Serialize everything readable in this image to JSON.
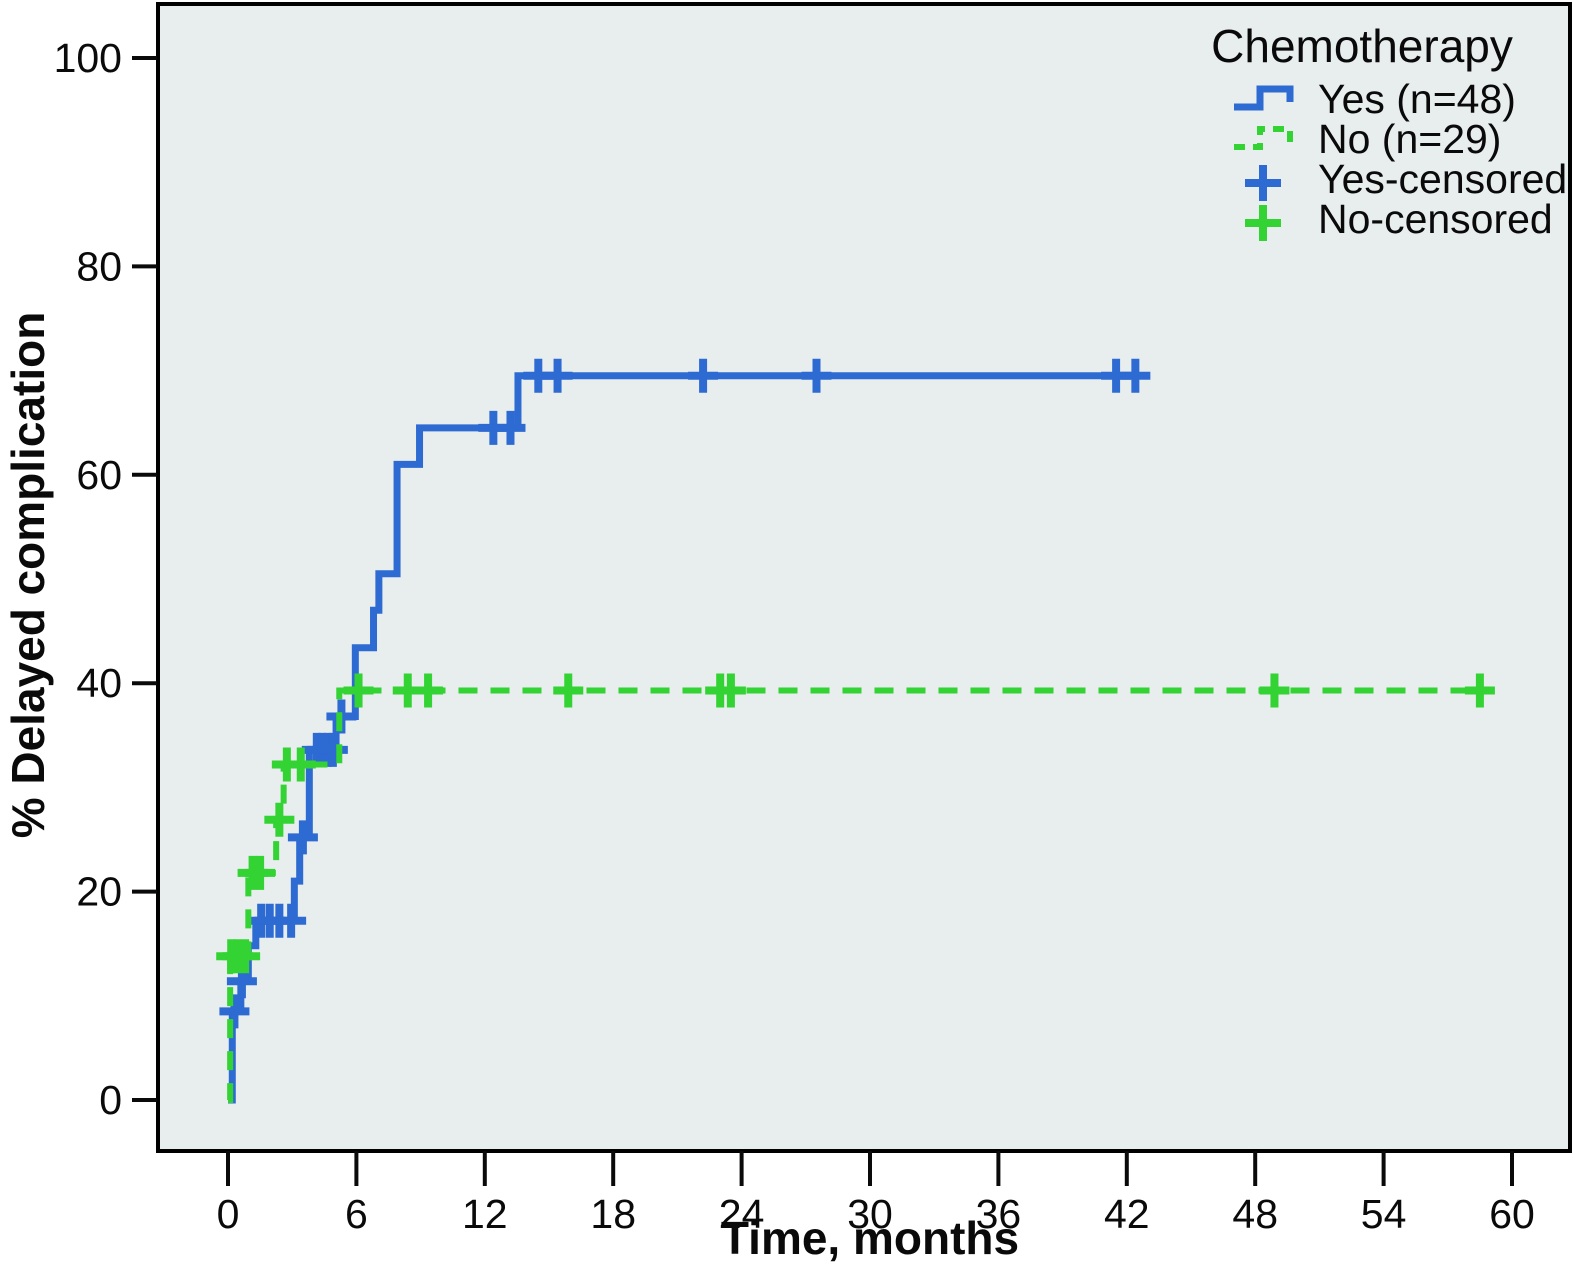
{
  "chart_data": {
    "type": "line",
    "subtype": "kaplan-meier-step-plot",
    "title": "",
    "xlabel": "Time, months",
    "ylabel": "% Delayed complication",
    "xlim": [
      0,
      60
    ],
    "ylim": [
      0,
      100
    ],
    "x_ticks": [
      0,
      6,
      12,
      18,
      24,
      30,
      36,
      42,
      48,
      54,
      60
    ],
    "y_ticks": [
      0,
      20,
      40,
      60,
      80,
      100
    ],
    "grid": "off",
    "plot_background": "#E8EDEE",
    "frame_color": "#000000",
    "legend": {
      "position": "top-right-inside",
      "title": "Chemotherapy",
      "entries": [
        {
          "label": "Yes (n=48)",
          "glyph": "step-line",
          "style": "solid",
          "color": "#2D6BD3"
        },
        {
          "label": "No (n=29)",
          "glyph": "step-line",
          "style": "dashed",
          "color": "#32D332"
        },
        {
          "label": "Yes-censored",
          "glyph": "plus-marker",
          "style": "solid",
          "color": "#2D6BD3"
        },
        {
          "label": "No-censored",
          "glyph": "plus-marker",
          "style": "solid",
          "color": "#32D332"
        }
      ]
    },
    "series": [
      {
        "name": "Yes (n=48)",
        "color": "#2D6BD3",
        "style": "solid",
        "steps": [
          [
            0,
            0
          ],
          [
            0.2,
            8.5
          ],
          [
            0.6,
            11.4
          ],
          [
            0.95,
            14.8
          ],
          [
            1.3,
            17.2
          ],
          [
            3.1,
            21.0
          ],
          [
            3.35,
            25.2
          ],
          [
            3.8,
            33.6
          ],
          [
            5.05,
            36.8
          ],
          [
            5.95,
            43.4
          ],
          [
            6.8,
            47.0
          ],
          [
            7.05,
            50.5
          ],
          [
            7.9,
            61.0
          ],
          [
            8.95,
            64.5
          ],
          [
            13.55,
            69.5
          ]
        ],
        "end_time": 42.9,
        "censored": [
          [
            0.3,
            8.5
          ],
          [
            0.65,
            11.4
          ],
          [
            1.55,
            17.2
          ],
          [
            1.95,
            17.2
          ],
          [
            2.4,
            17.2
          ],
          [
            2.95,
            17.2
          ],
          [
            3.5,
            25.2
          ],
          [
            4.15,
            33.6
          ],
          [
            4.4,
            33.6
          ],
          [
            4.65,
            33.6
          ],
          [
            4.9,
            33.6
          ],
          [
            5.3,
            36.8
          ],
          [
            12.4,
            64.5
          ],
          [
            13.2,
            64.5
          ],
          [
            14.5,
            69.5
          ],
          [
            15.4,
            69.5
          ],
          [
            22.2,
            69.5
          ],
          [
            27.5,
            69.5
          ],
          [
            41.5,
            69.5
          ],
          [
            42.4,
            69.5
          ]
        ]
      },
      {
        "name": "No (n=29)",
        "color": "#32D332",
        "style": "dashed",
        "steps": [
          [
            0,
            0
          ],
          [
            0.1,
            13.8
          ],
          [
            0.95,
            21.8
          ],
          [
            2.25,
            26.9
          ],
          [
            2.6,
            32.2
          ],
          [
            5.2,
            39.3
          ]
        ],
        "end_time": 58.5,
        "censored": [
          [
            0.15,
            13.8
          ],
          [
            0.45,
            13.8
          ],
          [
            0.8,
            13.8
          ],
          [
            1.15,
            21.8
          ],
          [
            1.5,
            21.8
          ],
          [
            2.4,
            26.9
          ],
          [
            2.75,
            32.2
          ],
          [
            3.4,
            32.2
          ],
          [
            6.1,
            39.3
          ],
          [
            8.4,
            39.3
          ],
          [
            9.35,
            39.3
          ],
          [
            15.9,
            39.3
          ],
          [
            23.0,
            39.3
          ],
          [
            23.5,
            39.3
          ],
          [
            48.9,
            39.3
          ],
          [
            58.5,
            39.3
          ]
        ]
      }
    ]
  }
}
